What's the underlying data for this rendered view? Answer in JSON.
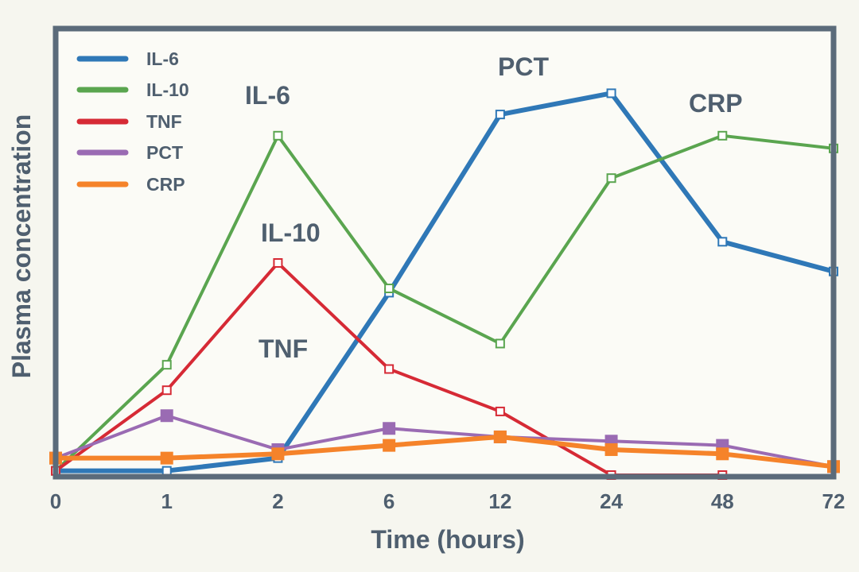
{
  "chart_data": {
    "type": "line",
    "xlabel": "Time (hours)",
    "ylabel": "Plasma concentration",
    "categories": [
      "0",
      "1",
      "2",
      "6",
      "12",
      "24",
      "48",
      "72"
    ],
    "ylim": [
      0,
      100
    ],
    "grid": false,
    "legend_position": "top-left",
    "series": [
      {
        "name": "IL-6",
        "color": "#2f78b7",
        "values": [
          1,
          1,
          4,
          43,
          85,
          90,
          55,
          48
        ]
      },
      {
        "name": "IL-10",
        "color": "#5aa54f",
        "values": [
          1,
          26,
          80,
          44,
          31,
          70,
          80,
          77
        ]
      },
      {
        "name": "TNF",
        "color": "#d62a35",
        "values": [
          1,
          20,
          50,
          25,
          15,
          0,
          0,
          null
        ]
      },
      {
        "name": "PCT",
        "color": "#9a6bb3",
        "values": [
          4,
          14,
          6,
          11,
          9,
          8,
          7,
          2
        ]
      },
      {
        "name": "CRP",
        "color": "#f5832a",
        "values": [
          4,
          4,
          5,
          7,
          9,
          6,
          5,
          2
        ]
      }
    ],
    "annotations": [
      "IL-6",
      "IL-10",
      "TNF",
      "PCT",
      "CRP"
    ]
  }
}
